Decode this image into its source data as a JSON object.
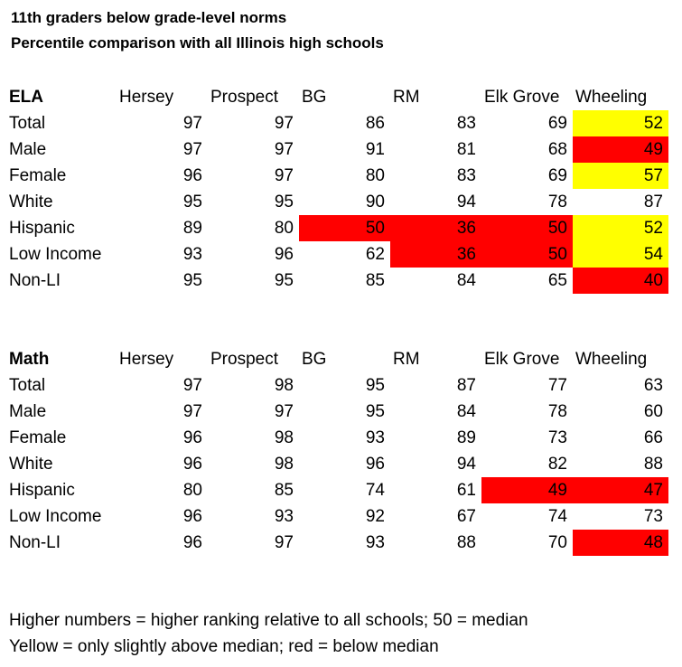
{
  "title_line1": "11th graders below grade-level norms",
  "title_line2": "Percentile comparison with all Illinois high schools",
  "columns": [
    "Hersey",
    "Prospect",
    "BG",
    "RM",
    "Elk Grove",
    "Wheeling"
  ],
  "colors": {
    "yellow": "#ffff00",
    "red": "#ff0000"
  },
  "sections": [
    {
      "label": "ELA",
      "rows": [
        {
          "label": "Total",
          "values": [
            97,
            97,
            86,
            83,
            69,
            52
          ],
          "highlight": [
            "",
            "",
            "",
            "",
            "",
            "yellow"
          ]
        },
        {
          "label": "Male",
          "values": [
            97,
            97,
            91,
            81,
            68,
            49
          ],
          "highlight": [
            "",
            "",
            "",
            "",
            "",
            "red"
          ]
        },
        {
          "label": "Female",
          "values": [
            96,
            97,
            80,
            83,
            69,
            57
          ],
          "highlight": [
            "",
            "",
            "",
            "",
            "",
            "yellow"
          ]
        },
        {
          "label": "White",
          "values": [
            95,
            95,
            90,
            94,
            78,
            87
          ],
          "highlight": [
            "",
            "",
            "",
            "",
            "",
            ""
          ]
        },
        {
          "label": "Hispanic",
          "values": [
            89,
            80,
            50,
            36,
            50,
            52
          ],
          "highlight": [
            "",
            "",
            "red",
            "red",
            "red",
            "yellow"
          ]
        },
        {
          "label": "Low Income",
          "values": [
            93,
            96,
            62,
            36,
            50,
            54
          ],
          "highlight": [
            "",
            "",
            "",
            "red",
            "red",
            "yellow"
          ]
        },
        {
          "label": "Non-LI",
          "values": [
            95,
            95,
            85,
            84,
            65,
            40
          ],
          "highlight": [
            "",
            "",
            "",
            "",
            "",
            "red"
          ]
        }
      ]
    },
    {
      "label": "Math",
      "rows": [
        {
          "label": "Total",
          "values": [
            97,
            98,
            95,
            87,
            77,
            63
          ],
          "highlight": [
            "",
            "",
            "",
            "",
            "",
            ""
          ]
        },
        {
          "label": "Male",
          "values": [
            97,
            97,
            95,
            84,
            78,
            60
          ],
          "highlight": [
            "",
            "",
            "",
            "",
            "",
            ""
          ]
        },
        {
          "label": "Female",
          "values": [
            96,
            98,
            93,
            89,
            73,
            66
          ],
          "highlight": [
            "",
            "",
            "",
            "",
            "",
            ""
          ]
        },
        {
          "label": "White",
          "values": [
            96,
            98,
            96,
            94,
            82,
            88
          ],
          "highlight": [
            "",
            "",
            "",
            "",
            "",
            ""
          ]
        },
        {
          "label": "Hispanic",
          "values": [
            80,
            85,
            74,
            61,
            49,
            47
          ],
          "highlight": [
            "",
            "",
            "",
            "",
            "red",
            "red"
          ]
        },
        {
          "label": "Low Income",
          "values": [
            96,
            93,
            92,
            67,
            74,
            73
          ],
          "highlight": [
            "",
            "",
            "",
            "",
            "",
            ""
          ]
        },
        {
          "label": "Non-LI",
          "values": [
            96,
            97,
            93,
            88,
            70,
            48
          ],
          "highlight": [
            "",
            "",
            "",
            "",
            "",
            "red"
          ]
        }
      ]
    }
  ],
  "note_line1": "Higher numbers = higher ranking relative to all schools; 50 = median",
  "note_line2": "Yellow = only slightly above median; red = below median"
}
